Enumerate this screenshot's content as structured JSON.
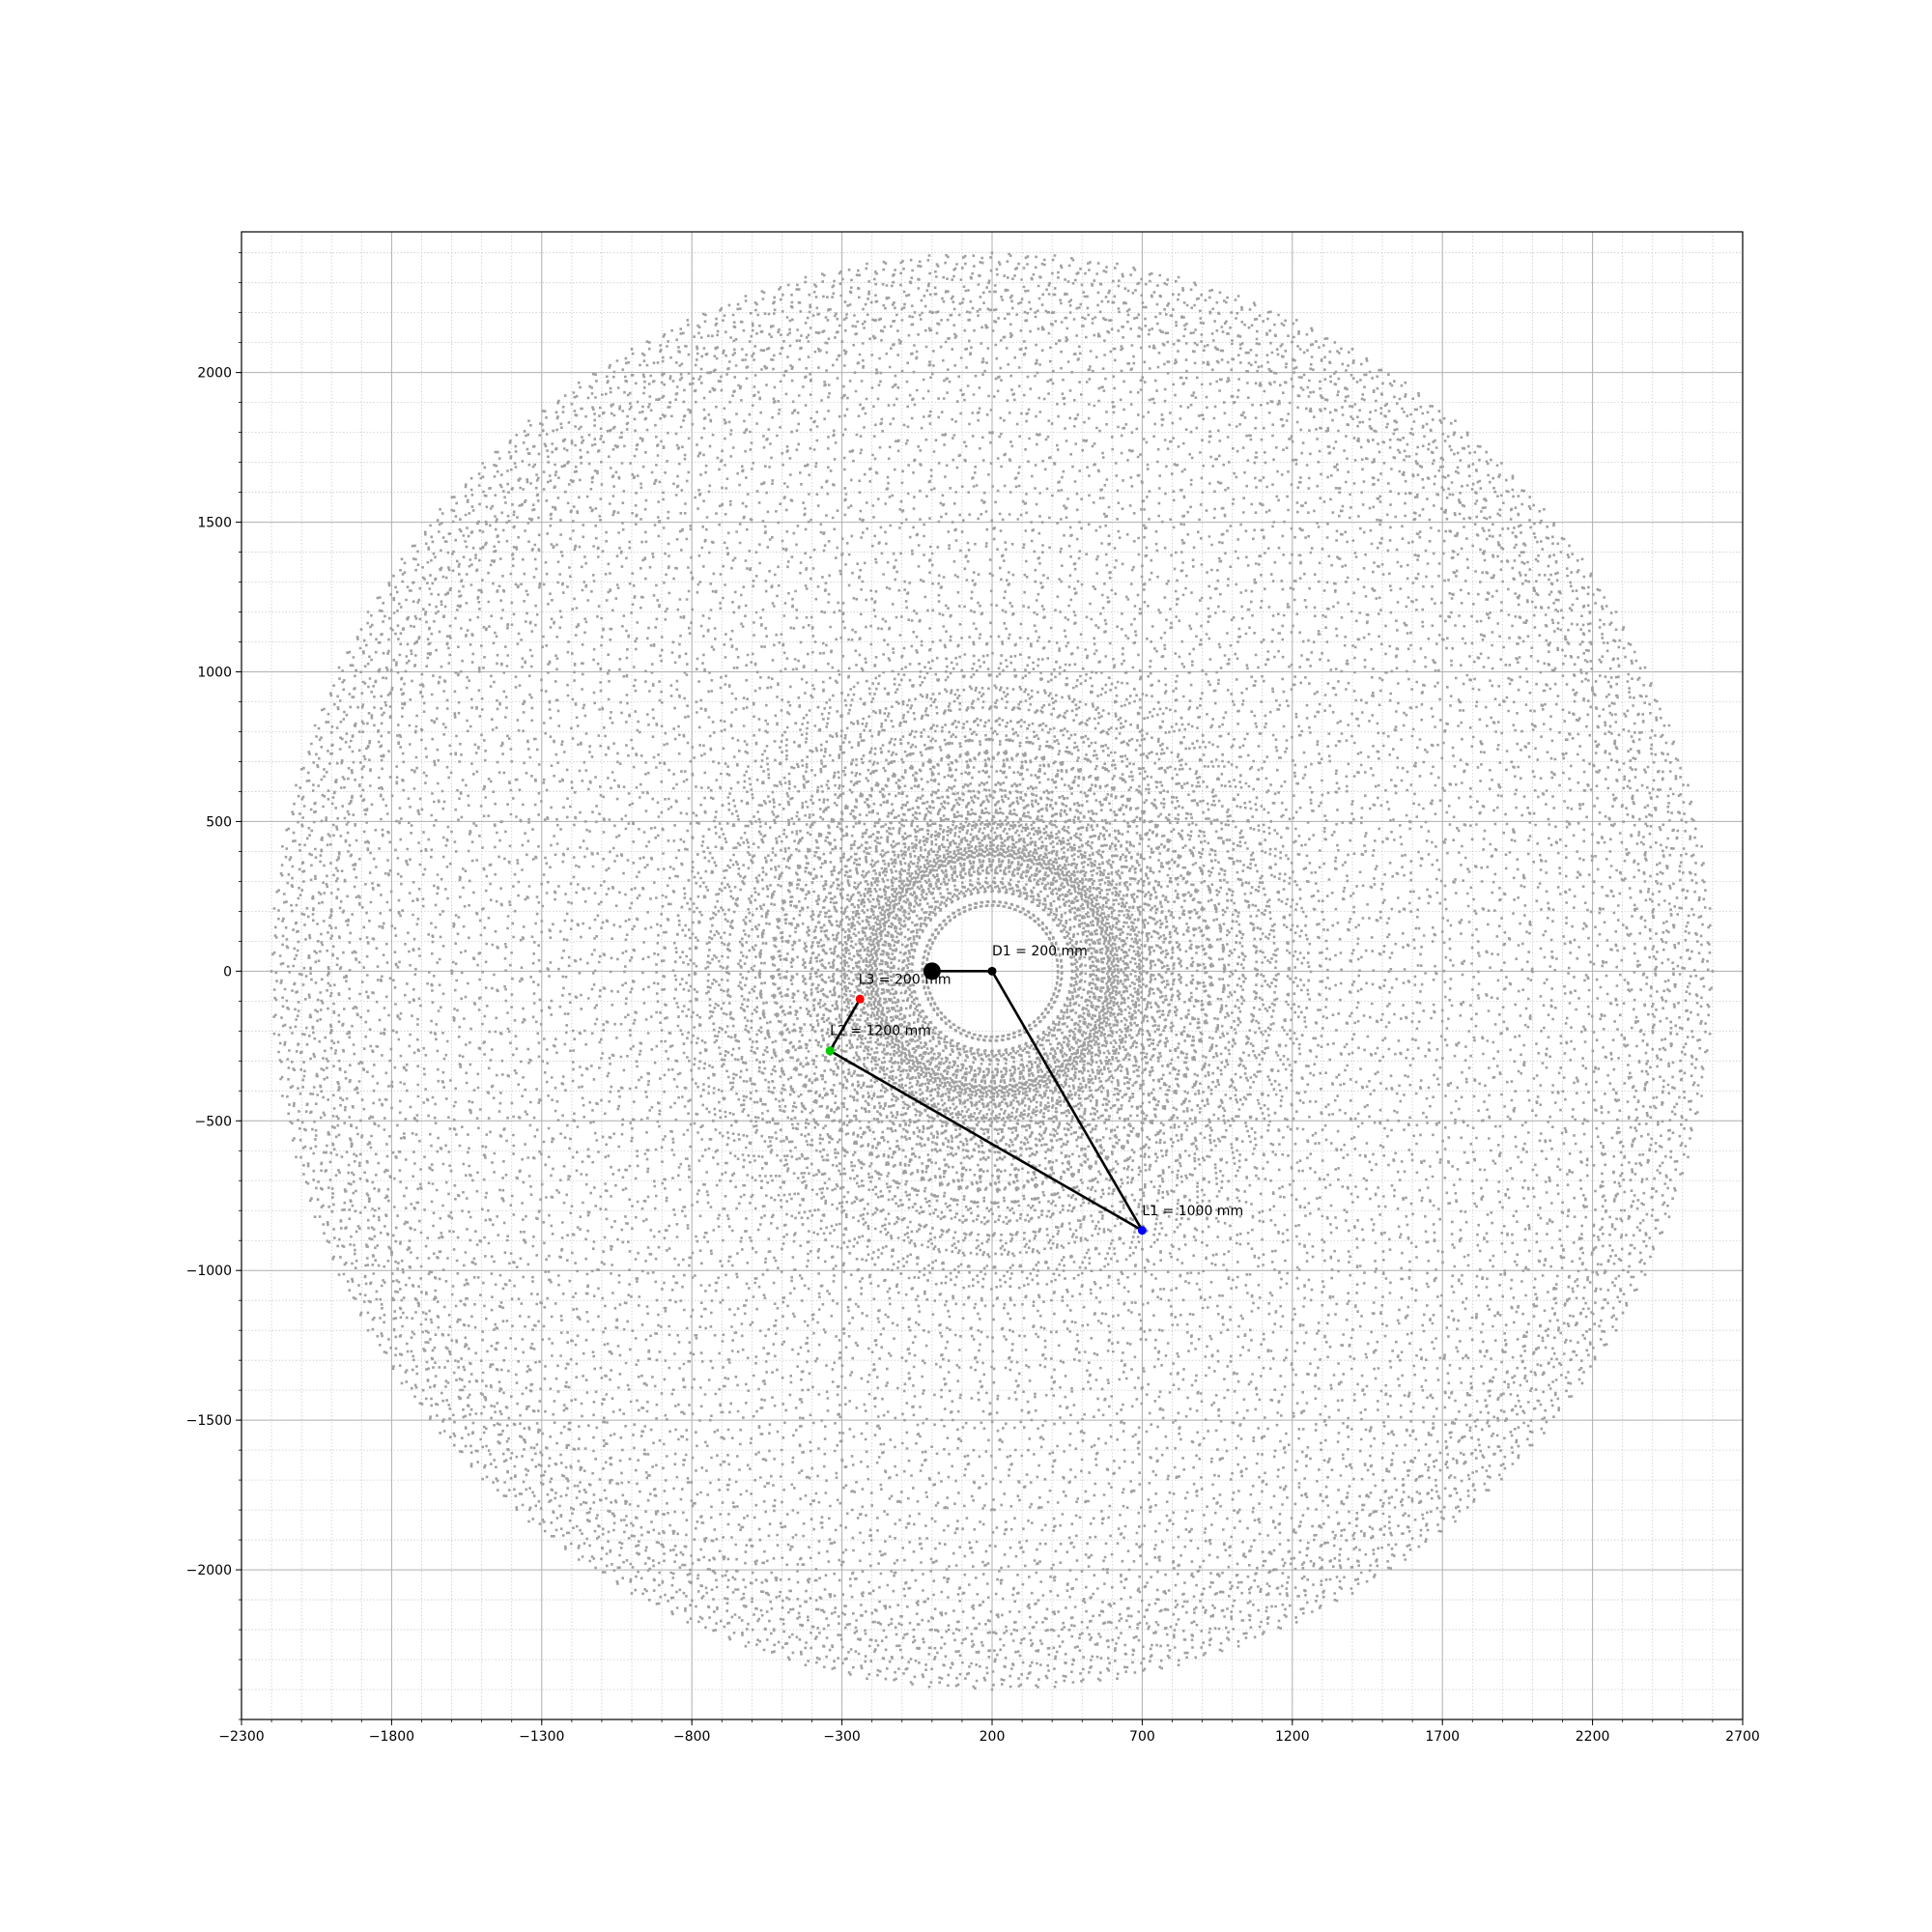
{
  "chart_data": {
    "type": "scatter",
    "title": "",
    "xlabel": "",
    "ylabel": "",
    "xlim": [
      -2300,
      2700
    ],
    "ylim": [
      -2500,
      2470
    ],
    "xticks": [
      -2300,
      -1800,
      -1300,
      -800,
      -300,
      200,
      700,
      1200,
      1700,
      2200,
      2700
    ],
    "xtick_labels": [
      "−2300",
      "−1800",
      "−1300",
      "−800",
      "−300",
      "200",
      "700",
      "1200",
      "1700",
      "2200",
      "2700"
    ],
    "yticks": [
      -2000,
      -1500,
      -1000,
      -500,
      0,
      500,
      1000,
      1500,
      2000
    ],
    "ytick_labels": [
      "−2000",
      "−1500",
      "−1000",
      "−500",
      "0",
      "500",
      "1000",
      "1500",
      "2000"
    ],
    "x_minor_step": 100,
    "y_minor_step": 100,
    "grid": "major solid, minor dotted",
    "workspace_color": "#a0a0a0",
    "link_color": "#000000",
    "base_point": [
      0,
      0
    ],
    "joints": [
      {
        "name": "d1",
        "x": 200,
        "y": 0,
        "color": "#000000"
      },
      {
        "name": "l1",
        "x": 700,
        "y": -866,
        "color": "#0000ff"
      },
      {
        "name": "l2",
        "x": -340,
        "y": -266,
        "color": "#00cc00"
      },
      {
        "name": "l3",
        "x": -240,
        "y": -93,
        "color": "#ff0000"
      }
    ],
    "annotations": [
      {
        "text": "D1 = 200 mm",
        "x": 200,
        "y": 52
      },
      {
        "text": "L3 = 200 mm",
        "x": -245,
        "y": -42
      },
      {
        "text": "L2 = 1200 mm",
        "x": -340,
        "y": -214
      },
      {
        "text": "L1 = 1000 mm",
        "x": 700,
        "y": -815
      }
    ],
    "workspace": {
      "d1": 200,
      "l1": 1000,
      "l2": 1200,
      "l3": 200,
      "theta1_range_deg": [
        0,
        360
      ],
      "theta2_range_deg": [
        0,
        225
      ],
      "theta3_range_deg": [
        -90,
        90
      ]
    }
  }
}
